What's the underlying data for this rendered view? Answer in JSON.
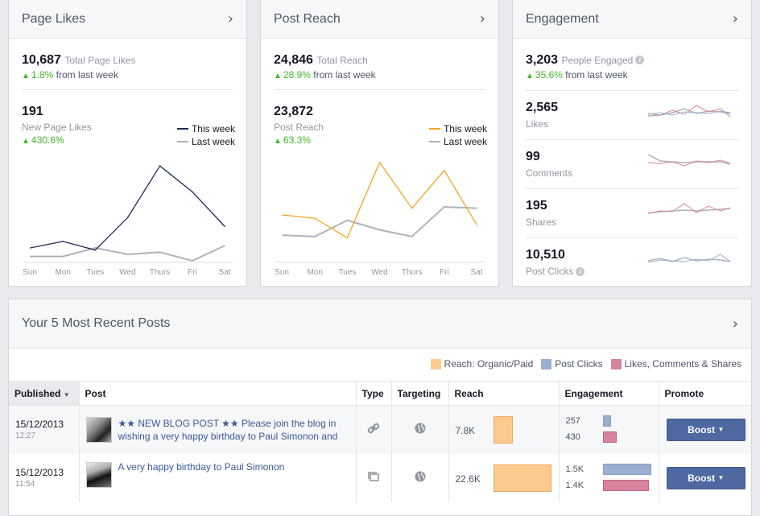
{
  "colors": {
    "this_week_likes": "#1c2b4f",
    "last_week": "#b0b3ba",
    "this_week_reach": "#f5a623",
    "up": "#42b72a",
    "engagement_blue": "#9cafd2",
    "engagement_pink": "#d6849c",
    "reach_bar": "#fdca8d",
    "boost_button": "#4e69a2"
  },
  "page_likes": {
    "title": "Page Likes",
    "total": "10,687",
    "total_label": "Total Page Likes",
    "change": "1.8%",
    "change_suffix": "from last week",
    "new_value": "191",
    "new_label": "New Page Likes",
    "new_change": "430.6%",
    "legend_this": "This week",
    "legend_last": "Last week"
  },
  "post_reach": {
    "title": "Post Reach",
    "total": "24,846",
    "total_label": "Total Reach",
    "change": "28.9%",
    "change_suffix": "from last week",
    "value": "23,872",
    "label": "Post Reach",
    "value_change": "63.3%",
    "legend_this": "This week",
    "legend_last": "Last week"
  },
  "engagement": {
    "title": "Engagement",
    "total": "3,203",
    "total_label": "People Engaged",
    "change": "35.6%",
    "change_suffix": "from last week",
    "rows": [
      {
        "value": "2,565",
        "label": "Likes"
      },
      {
        "value": "99",
        "label": "Comments"
      },
      {
        "value": "195",
        "label": "Shares"
      },
      {
        "value": "10,510",
        "label": "Post Clicks"
      }
    ]
  },
  "chart_data": [
    {
      "type": "line",
      "x": [
        "Sun",
        "Mon",
        "Tues",
        "Wed",
        "Thurs",
        "Fri",
        "Sat"
      ],
      "series": [
        {
          "name": "This week",
          "values": [
            6,
            9,
            5,
            20,
            44,
            32,
            16
          ]
        },
        {
          "name": "Last week",
          "values": [
            2,
            2,
            6,
            3,
            4,
            0,
            7
          ]
        }
      ],
      "ylim": [
        0,
        50
      ],
      "legend": "top-right"
    },
    {
      "type": "line",
      "x": [
        "Sun",
        "Mon",
        "Tues",
        "Wed",
        "Thurs",
        "Fri",
        "Sat"
      ],
      "series": [
        {
          "name": "This week",
          "values": [
            3400,
            3150,
            1700,
            7300,
            3900,
            6700,
            2700
          ]
        },
        {
          "name": "Last week",
          "values": [
            1900,
            1800,
            3000,
            2300,
            1800,
            4000,
            3900
          ]
        }
      ],
      "ylim": [
        0,
        8000
      ],
      "legend": "top-right"
    }
  ],
  "recent_posts": {
    "title": "Your 5 Most Recent Posts",
    "legend": [
      "Reach: Organic/Paid",
      "Post Clicks",
      "Likes, Comments & Shares"
    ],
    "columns": [
      "Published",
      "Post",
      "Type",
      "Targeting",
      "Reach",
      "Engagement",
      "Promote"
    ],
    "rows": [
      {
        "date": "15/12/2013",
        "time": "12:27",
        "post": "★★ NEW BLOG POST ★★ Please join the blog in wishing a very happy birthday to Paul Simonon and",
        "reach": "7.8K",
        "reach_fraction": 0.33,
        "clicks": "257",
        "likes": "430",
        "clicks_fraction": 0.17,
        "likes_fraction": 0.28,
        "boost": "Boost"
      },
      {
        "date": "15/12/2013",
        "time": "11:54",
        "post": "A very happy birthday to Paul Simonon",
        "reach": "22.6K",
        "reach_fraction": 1.0,
        "clicks": "1.5K",
        "likes": "1.4K",
        "clicks_fraction": 1.0,
        "likes_fraction": 0.95,
        "boost": "Boost"
      }
    ]
  }
}
